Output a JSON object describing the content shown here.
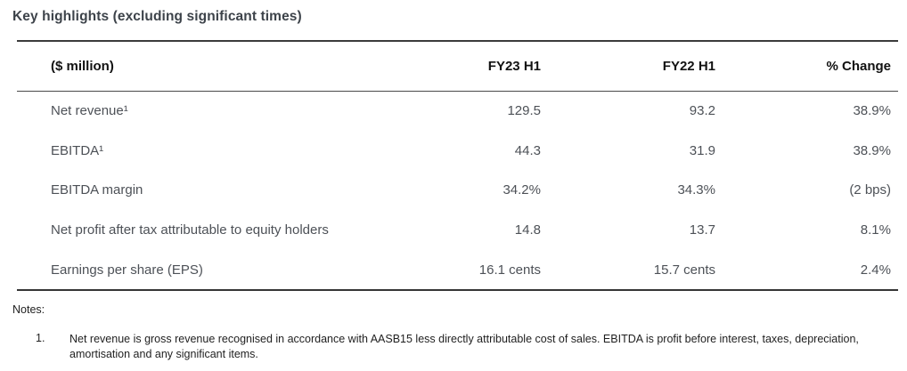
{
  "title": "Key highlights (excluding significant times)",
  "table": {
    "columns": [
      "($ million)",
      "FY23 H1",
      "FY22 H1",
      "% Change"
    ],
    "rows": [
      {
        "label": "Net revenue¹",
        "fy23_h1": "129.5",
        "fy22_h1": "93.2",
        "pct_change": "38.9%"
      },
      {
        "label": "EBITDA¹",
        "fy23_h1": "44.3",
        "fy22_h1": "31.9",
        "pct_change": "38.9%"
      },
      {
        "label": "EBITDA margin",
        "fy23_h1": "34.2%",
        "fy22_h1": "34.3%",
        "pct_change": "(2 bps)"
      },
      {
        "label": "Net profit after tax attributable to equity holders",
        "fy23_h1": "14.8",
        "fy22_h1": "13.7",
        "pct_change": "8.1%"
      },
      {
        "label": "Earnings per share (EPS)",
        "fy23_h1": "16.1 cents",
        "fy22_h1": "15.7 cents",
        "pct_change": "2.4%"
      }
    ]
  },
  "notes": {
    "label": "Notes:",
    "items": [
      {
        "number": "1.",
        "text": "Net revenue is gross revenue recognised in accordance with AASB15 less directly attributable cost of sales. EBITDA is profit before interest, taxes, depreciation, amortisation and any significant items."
      }
    ]
  },
  "colors": {
    "title_text": "#3d434a",
    "header_text": "#121212",
    "body_text": "#4d5157",
    "rule": "#3b3b3b",
    "background": "#ffffff"
  }
}
